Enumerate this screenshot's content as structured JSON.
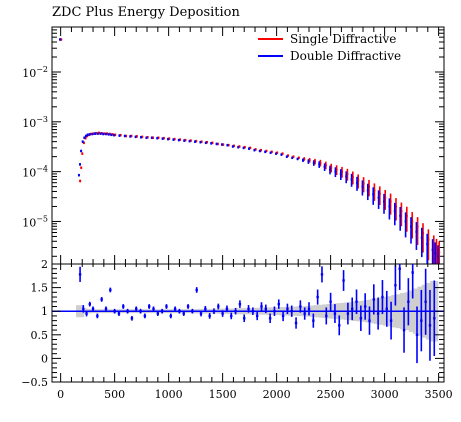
{
  "title": "ZDC Plus Energy Deposition",
  "colors": {
    "single_diffractive": "#ff0000",
    "double_diffractive": "#0000ff",
    "ratio_band": "#cfcfcf",
    "axis": "#000000"
  },
  "chart_data": [
    {
      "type": "scatter",
      "panel": "main",
      "title": "ZDC Plus Energy Deposition",
      "xlabel": "",
      "ylabel": "",
      "xlim": [
        -80,
        3550
      ],
      "ylim": [
        1.4e-06,
        0.08
      ],
      "yscale": "log",
      "grid": false,
      "legend": {
        "placement": "top-right",
        "entries": [
          "Single Diffractive",
          "Double Diffractive"
        ]
      },
      "y_tick_labels": [
        {
          "value": 0.01,
          "base": "10",
          "exp": "−2"
        },
        {
          "value": 0.001,
          "base": "10",
          "exp": "−3"
        },
        {
          "value": 0.0001,
          "base": "10",
          "exp": "−4"
        },
        {
          "value": 1e-05,
          "base": "10",
          "exp": "−5"
        }
      ],
      "series": [
        {
          "name": "Single Diffractive",
          "color": "#ff0000",
          "x": [
            0,
            175,
            185,
            195,
            210,
            225,
            240,
            255,
            275,
            300,
            325,
            350,
            375,
            400,
            425,
            450,
            475,
            500,
            550,
            600,
            650,
            700,
            750,
            800,
            850,
            900,
            950,
            1000,
            1050,
            1100,
            1150,
            1200,
            1250,
            1300,
            1350,
            1400,
            1450,
            1500,
            1550,
            1600,
            1650,
            1700,
            1750,
            1800,
            1850,
            1900,
            1950,
            2000,
            2050,
            2100,
            2150,
            2200,
            2250,
            2300,
            2350,
            2400,
            2450,
            2500,
            2550,
            2600,
            2650,
            2700,
            2750,
            2800,
            2850,
            2900,
            2950,
            3000,
            3050,
            3100,
            3150,
            3200,
            3250,
            3300,
            3350,
            3400,
            3450,
            3475,
            3500
          ],
          "y": [
            0.045,
            6.5e-05,
            0.00012,
            0.00023,
            0.00038,
            0.00047,
            0.00052,
            0.00055,
            0.00057,
            0.00058,
            0.00059,
            0.0006,
            0.00059,
            0.00058,
            0.00058,
            0.00057,
            0.00056,
            0.00055,
            0.00054,
            0.00052,
            0.00052,
            0.00051,
            0.0005,
            0.00049,
            0.00048,
            0.00048,
            0.00047,
            0.00046,
            0.00045,
            0.00044,
            0.00043,
            0.00042,
            0.00041,
            0.0004,
            0.00039,
            0.00038,
            0.00036,
            0.00035,
            0.00034,
            0.00033,
            0.00032,
            0.00031,
            0.0003,
            0.00028,
            0.00027,
            0.00026,
            0.00025,
            0.00024,
            0.00023,
            0.00021,
            0.0002,
            0.00019,
            0.00018,
            0.00017,
            0.00016,
            0.00015,
            0.000135,
            0.00012,
            0.00011,
            0.0001,
            9e-05,
            7.8e-05,
            6.7e-05,
            5.8e-05,
            5e-05,
            4.2e-05,
            3.6e-05,
            3e-05,
            2.5e-05,
            2e-05,
            1.6e-05,
            1.3e-05,
            1e-05,
            7.8e-06,
            5.8e-06,
            4.3e-06,
            3.2e-06,
            2.7e-06,
            2.4e-06
          ]
        },
        {
          "name": "Double Diffractive",
          "color": "#0000ff",
          "x": [
            0,
            175,
            185,
            195,
            210,
            225,
            240,
            255,
            275,
            300,
            325,
            350,
            375,
            400,
            425,
            450,
            475,
            500,
            550,
            600,
            650,
            700,
            750,
            800,
            850,
            900,
            950,
            1000,
            1050,
            1100,
            1150,
            1200,
            1250,
            1300,
            1350,
            1400,
            1450,
            1500,
            1550,
            1600,
            1650,
            1700,
            1750,
            1800,
            1850,
            1900,
            1950,
            2000,
            2050,
            2100,
            2150,
            2200,
            2250,
            2300,
            2350,
            2400,
            2450,
            2500,
            2550,
            2600,
            2650,
            2700,
            2750,
            2800,
            2850,
            2900,
            2950,
            3000,
            3050,
            3100,
            3150,
            3200,
            3250,
            3300,
            3350,
            3400,
            3450,
            3475,
            3500
          ],
          "y": [
            0.045,
            8.5e-05,
            0.00014,
            0.00026,
            0.0004,
            0.00048,
            0.00052,
            0.00055,
            0.00056,
            0.00057,
            0.00058,
            0.00058,
            0.00058,
            0.00057,
            0.00057,
            0.00056,
            0.00055,
            0.00054,
            0.00053,
            0.00052,
            0.00051,
            0.0005,
            0.00049,
            0.00048,
            0.00048,
            0.00047,
            0.00046,
            0.00045,
            0.00044,
            0.00043,
            0.00042,
            0.00041,
            0.0004,
            0.00039,
            0.00038,
            0.00037,
            0.00036,
            0.00035,
            0.00034,
            0.00032,
            0.00031,
            0.0003,
            0.00029,
            0.00027,
            0.00026,
            0.00025,
            0.00024,
            0.00023,
            0.00022,
            0.0002,
            0.00019,
            0.00018,
            0.00017,
            0.00016,
            0.00015,
            0.00014,
            0.000125,
            0.00011,
            0.0001,
            9e-05,
            8e-05,
            7e-05,
            6e-05,
            5e-05,
            4.2e-05,
            3.5e-05,
            3e-05,
            2.5e-05,
            2e-05,
            1.6e-05,
            1.3e-05,
            1e-05,
            7.9e-06,
            6.2e-06,
            4.7e-06,
            3.5e-06,
            2.7e-06,
            2.3e-06,
            2e-06
          ]
        }
      ]
    },
    {
      "type": "scatter",
      "panel": "ratio",
      "xlabel": "",
      "ylabel": "",
      "xlim": [
        -80,
        3550
      ],
      "ylim": [
        -0.5,
        2
      ],
      "reference_line": 1,
      "grid": false,
      "x_tick_labels": [
        "0",
        "500",
        "1000",
        "1500",
        "2000",
        "2500",
        "3000",
        "3500"
      ],
      "y_tick_labels": [
        "2",
        "1.5",
        "1",
        "0.5",
        "0",
        "−0.5"
      ],
      "series": [
        {
          "name": "Double Diffractive",
          "color": "#0000ff",
          "x": [
            180,
            210,
            240,
            270,
            300,
            340,
            380,
            420,
            460,
            500,
            540,
            580,
            620,
            660,
            700,
            740,
            780,
            820,
            860,
            900,
            940,
            980,
            1020,
            1060,
            1100,
            1140,
            1180,
            1220,
            1260,
            1300,
            1340,
            1380,
            1420,
            1460,
            1500,
            1540,
            1580,
            1620,
            1660,
            1700,
            1740,
            1780,
            1820,
            1860,
            1900,
            1940,
            1980,
            2020,
            2060,
            2100,
            2140,
            2180,
            2220,
            2260,
            2300,
            2340,
            2380,
            2420,
            2460,
            2500,
            2540,
            2580,
            2620,
            2660,
            2700,
            2740,
            2780,
            2820,
            2860,
            2900,
            2940,
            2980,
            3020,
            3060,
            3100,
            3140,
            3180,
            3220,
            3260,
            3300,
            3340,
            3380,
            3420,
            3460
          ],
          "y": [
            1.78,
            1.05,
            0.95,
            1.15,
            1.05,
            0.9,
            1.25,
            1.05,
            1.45,
            1.0,
            0.95,
            1.1,
            1.0,
            0.85,
            1.05,
            1.0,
            0.9,
            1.1,
            1.05,
            0.95,
            1.0,
            1.1,
            0.9,
            1.05,
            1.0,
            0.95,
            1.1,
            1.0,
            1.45,
            0.95,
            1.05,
            0.9,
            1.0,
            1.1,
            0.95,
            1.05,
            0.9,
            1.0,
            1.15,
            0.85,
            1.05,
            1.0,
            0.9,
            1.1,
            1.05,
            0.85,
            1.0,
            1.15,
            0.9,
            1.05,
            1.0,
            0.75,
            1.1,
            0.95,
            1.05,
            0.8,
            1.3,
            1.78,
            0.9,
            1.2,
            0.95,
            0.7,
            1.65,
            0.95,
            1.05,
            1.2,
            0.85,
            1.1,
            0.8,
            1.25,
            0.95,
            1.3,
            1.05,
            0.8,
            1.55,
            1.9,
            0.6,
            1.2,
            1.82,
            0.5,
            0.8,
            1.2,
            0.7,
            0.85
          ],
          "yerr": [
            0.16,
            0.08,
            0.06,
            0.05,
            0.05,
            0.05,
            0.05,
            0.05,
            0.05,
            0.05,
            0.05,
            0.05,
            0.05,
            0.05,
            0.05,
            0.05,
            0.05,
            0.05,
            0.05,
            0.05,
            0.05,
            0.05,
            0.05,
            0.05,
            0.05,
            0.05,
            0.05,
            0.05,
            0.06,
            0.06,
            0.06,
            0.06,
            0.06,
            0.06,
            0.07,
            0.07,
            0.07,
            0.07,
            0.08,
            0.08,
            0.08,
            0.08,
            0.09,
            0.09,
            0.09,
            0.1,
            0.1,
            0.1,
            0.11,
            0.11,
            0.12,
            0.12,
            0.13,
            0.13,
            0.14,
            0.15,
            0.16,
            0.17,
            0.18,
            0.19,
            0.2,
            0.21,
            0.22,
            0.23,
            0.24,
            0.26,
            0.27,
            0.28,
            0.3,
            0.32,
            0.34,
            0.36,
            0.38,
            0.4,
            0.43,
            0.45,
            0.48,
            0.5,
            0.55,
            0.6,
            0.65,
            0.7,
            0.75,
            0.8
          ]
        }
      ]
    }
  ]
}
